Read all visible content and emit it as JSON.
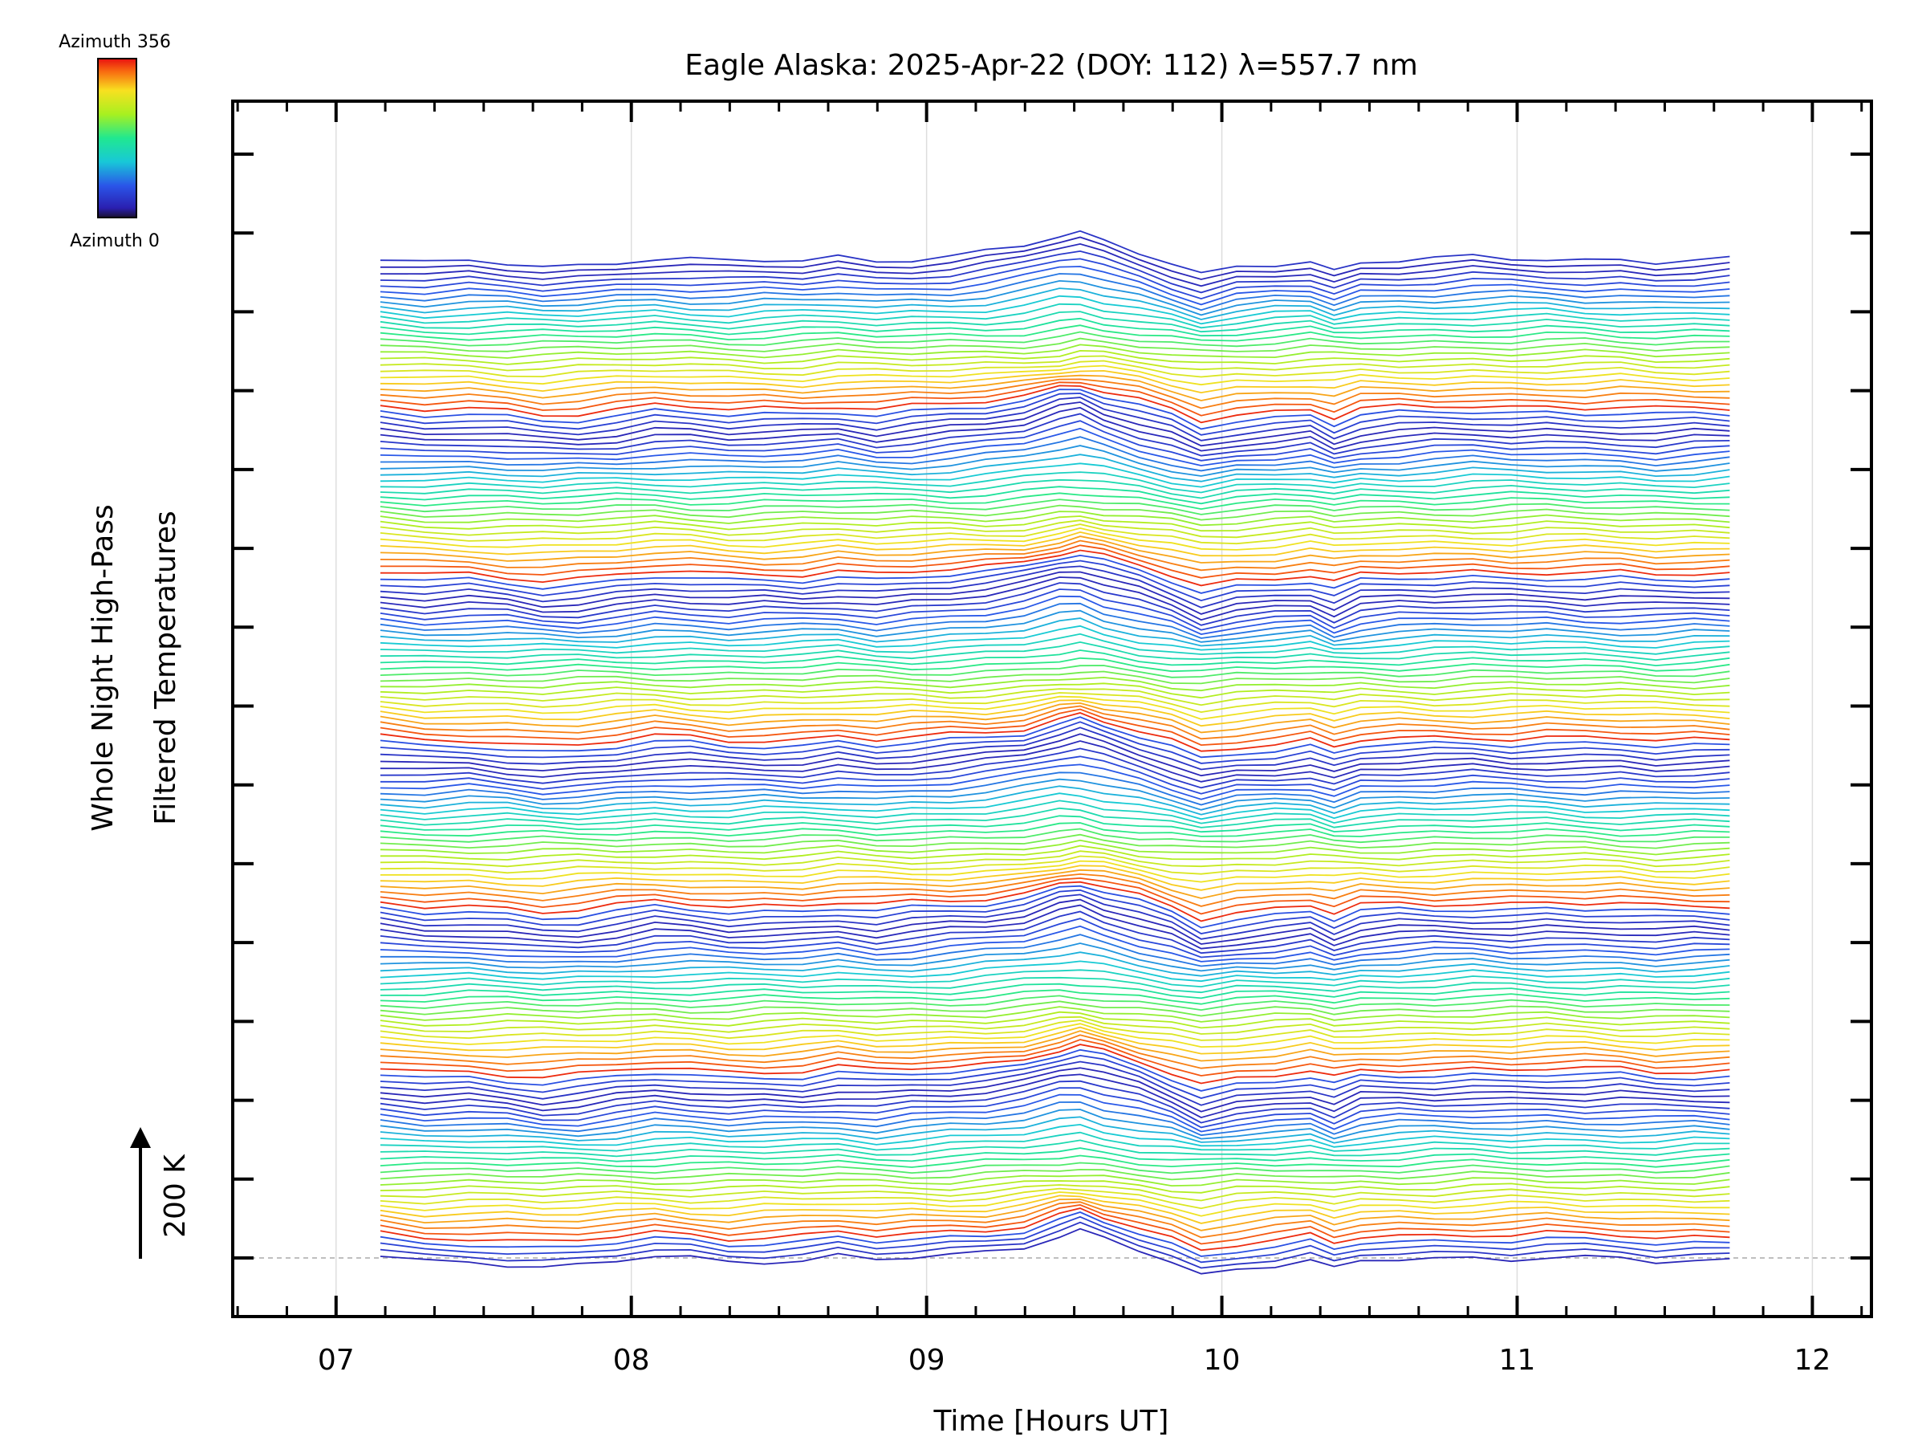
{
  "chart_data": {
    "type": "line",
    "title": "Eagle Alaska: 2025-Apr-22 (DOY: 112) λ=557.7 nm",
    "xlabel": "Time [Hours UT]",
    "ylabel_line1": "Whole Night High-Pass",
    "ylabel_line2": "Filtered Temperatures",
    "scale_label": "200 K",
    "x_ticks": [
      "07",
      "08",
      "09",
      "10",
      "11",
      "12"
    ],
    "x_tick_values": [
      7,
      8,
      9,
      10,
      11,
      12
    ],
    "xlim": [
      6.65,
      12.2
    ],
    "x_start": 7.15,
    "x_end": 11.72,
    "grid": "vertical lines at each hour",
    "colorbar": {
      "top_label": "Azimuth 356",
      "bottom_label": "Azimuth 0",
      "colormap": "rainbow (blue to red)"
    },
    "n_traces": 170,
    "trace_offset_k": 15,
    "azimuth_range": [
      0,
      356
    ],
    "sweeps": 6,
    "signature": {
      "description": "every trace shares a common pattern: broad peak near 09.5 UT, sharp dip near 09.93 UT, narrow dip near 10.38 UT",
      "x": [
        7.15,
        7.3,
        7.45,
        7.58,
        7.7,
        7.82,
        7.95,
        8.08,
        8.2,
        8.33,
        8.45,
        8.58,
        8.7,
        8.83,
        8.95,
        9.08,
        9.2,
        9.33,
        9.45,
        9.52,
        9.6,
        9.72,
        9.83,
        9.93,
        10.05,
        10.18,
        10.3,
        10.38,
        10.47,
        10.6,
        10.72,
        10.85,
        10.98,
        11.1,
        11.23,
        11.35,
        11.47,
        11.6,
        11.72
      ],
      "y": [
        0,
        -12,
        -8,
        -14,
        -22,
        -18,
        -8,
        3,
        -2,
        -10,
        -6,
        -4,
        6,
        -6,
        0,
        6,
        14,
        30,
        60,
        70,
        48,
        18,
        -12,
        -45,
        -25,
        -15,
        -5,
        -30,
        -8,
        -4,
        -2,
        2,
        0,
        2,
        -2,
        -3,
        -10,
        -6,
        -4
      ]
    }
  }
}
